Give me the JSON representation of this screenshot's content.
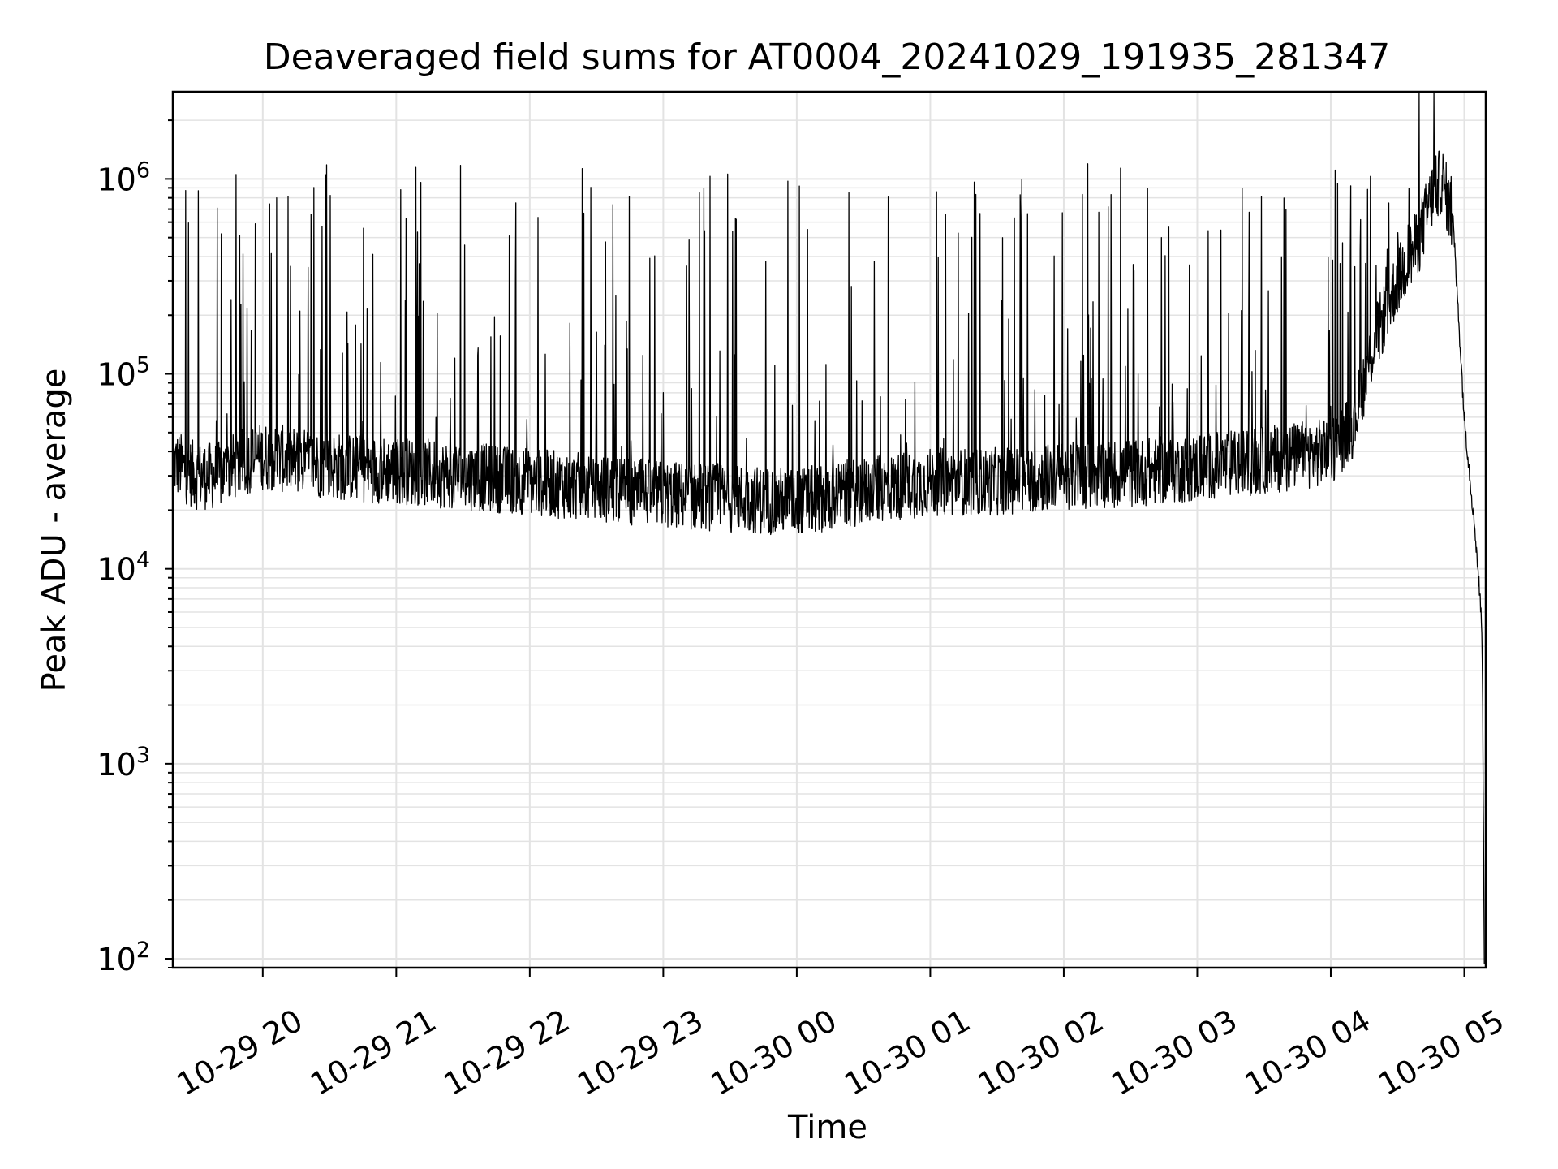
{
  "chart_data": {
    "type": "line",
    "title": "Deaveraged field sums for AT0004_20241029_191935_281347",
    "xlabel": "Time",
    "ylabel": "Peak ADU - average",
    "y_scale": "log",
    "ylim": [
      90,
      2800000
    ],
    "xlim": [
      "2024-10-29 19:19:35",
      "2024-10-30 05:09:40"
    ],
    "grid": true,
    "line_color": "#000000",
    "grid_color": "#e3e3e3",
    "x_ticks": [
      {
        "value": "2024-10-29 20:00",
        "label": "10-29 20"
      },
      {
        "value": "2024-10-29 21:00",
        "label": "10-29 21"
      },
      {
        "value": "2024-10-29 22:00",
        "label": "10-29 22"
      },
      {
        "value": "2024-10-29 23:00",
        "label": "10-29 23"
      },
      {
        "value": "2024-10-30 00:00",
        "label": "10-30 00"
      },
      {
        "value": "2024-10-30 01:00",
        "label": "10-30 01"
      },
      {
        "value": "2024-10-30 02:00",
        "label": "10-30 02"
      },
      {
        "value": "2024-10-30 03:00",
        "label": "10-30 03"
      },
      {
        "value": "2024-10-30 04:00",
        "label": "10-30 04"
      },
      {
        "value": "2024-10-30 05:00",
        "label": "10-30 05"
      }
    ],
    "y_ticks": [
      {
        "value": 100,
        "base": "10",
        "exp": "2"
      },
      {
        "value": 1000,
        "base": "10",
        "exp": "3"
      },
      {
        "value": 10000,
        "base": "10",
        "exp": "4"
      },
      {
        "value": 100000,
        "base": "10",
        "exp": "5"
      },
      {
        "value": 1000000,
        "base": "10",
        "exp": "6"
      }
    ],
    "series": [
      {
        "x": [
          "2024-10-29 19:20",
          "2024-10-29 19:30",
          "2024-10-29 19:40",
          "2024-10-29 19:50",
          "2024-10-29 20:00",
          "2024-10-29 20:20",
          "2024-10-29 20:40",
          "2024-10-29 21:00",
          "2024-10-29 21:30",
          "2024-10-29 22:00",
          "2024-10-29 22:30",
          "2024-10-29 23:00",
          "2024-10-29 23:30",
          "2024-10-30 00:00",
          "2024-10-30 00:30",
          "2024-10-30 01:00",
          "2024-10-30 01:30",
          "2024-10-30 02:00",
          "2024-10-30 02:30",
          "2024-10-30 03:00",
          "2024-10-30 03:30",
          "2024-10-30 04:00",
          "2024-10-30 04:10",
          "2024-10-30 04:20",
          "2024-10-30 04:30",
          "2024-10-30 04:40",
          "2024-10-30 04:45",
          "2024-10-30 04:50",
          "2024-10-30 04:55",
          "2024-10-30 05:00",
          "2024-10-30 05:05",
          "2024-10-30 05:08",
          "2024-10-30 05:09"
        ],
        "y": [
          35000,
          30000,
          30000,
          35000,
          38000,
          35000,
          33000,
          32000,
          30000,
          28000,
          26000,
          24000,
          23000,
          22000,
          25000,
          28000,
          28000,
          30000,
          31000,
          33000,
          36000,
          40000,
          55000,
          150000,
          300000,
          500000,
          800000,
          1000000,
          600000,
          60000,
          15000,
          5000,
          100
        ],
        "spikes_to": 1200000
      }
    ]
  }
}
